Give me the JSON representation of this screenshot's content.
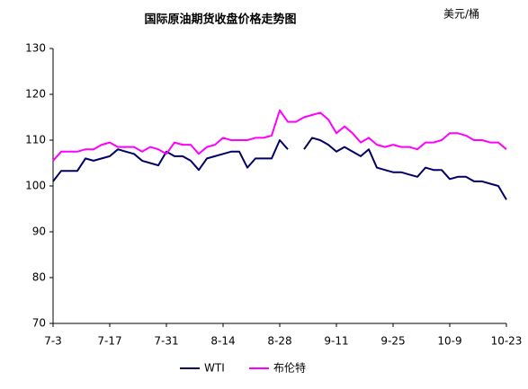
{
  "chart_data": {
    "type": "line",
    "title": "国际原油期货收盘价格走势图",
    "unit_label": "美元/桶",
    "categories": [
      "7-3",
      null,
      null,
      null,
      null,
      null,
      null,
      "7-17",
      null,
      null,
      null,
      null,
      null,
      null,
      "7-31",
      null,
      null,
      null,
      null,
      null,
      null,
      "8-14",
      null,
      null,
      null,
      null,
      null,
      null,
      "8-28",
      null,
      null,
      null,
      null,
      null,
      null,
      "9-11",
      null,
      null,
      null,
      null,
      null,
      null,
      "9-25",
      null,
      null,
      null,
      null,
      null,
      null,
      "10-9",
      null,
      null,
      null,
      null,
      null,
      null,
      "10-23"
    ],
    "series": [
      {
        "name": "WTI",
        "color": "#000066",
        "values": [
          101,
          103.3,
          103.3,
          103.3,
          106,
          105.5,
          106,
          106.5,
          108,
          107.5,
          107,
          105.5,
          105,
          104.5,
          107.5,
          106.5,
          106.5,
          105.5,
          103.5,
          106,
          106.5,
          107,
          107.5,
          107.5,
          104,
          106,
          106,
          106,
          110,
          108,
          null,
          108,
          110.5,
          110,
          109,
          107.5,
          108.5,
          107.5,
          106.5,
          108,
          104,
          103.5,
          103,
          103,
          102.5,
          102,
          104,
          103.5,
          103.5,
          101.5,
          102,
          102,
          101,
          101,
          100.5,
          100,
          97
        ]
      },
      {
        "name": "布伦特",
        "color": "#ff00ff",
        "values": [
          105.5,
          107.5,
          107.5,
          107.5,
          108,
          108,
          109,
          109.5,
          108.5,
          108.5,
          108.5,
          107.5,
          108.5,
          108,
          107,
          109.5,
          109,
          109,
          107,
          108.5,
          109,
          110.5,
          110,
          110,
          110,
          110.5,
          110.5,
          111,
          116.5,
          114,
          114,
          115,
          115.5,
          116,
          114.5,
          111.5,
          113,
          111.5,
          109.5,
          110.5,
          109,
          108.5,
          109,
          108.5,
          108.5,
          108,
          109.5,
          109.5,
          110,
          111.5,
          111.5,
          111,
          110,
          110,
          109.5,
          109.5,
          108
        ]
      }
    ],
    "ylim": [
      70,
      130
    ],
    "yticks": [
      70,
      80,
      90,
      100,
      110,
      120,
      130
    ],
    "grid": false
  }
}
